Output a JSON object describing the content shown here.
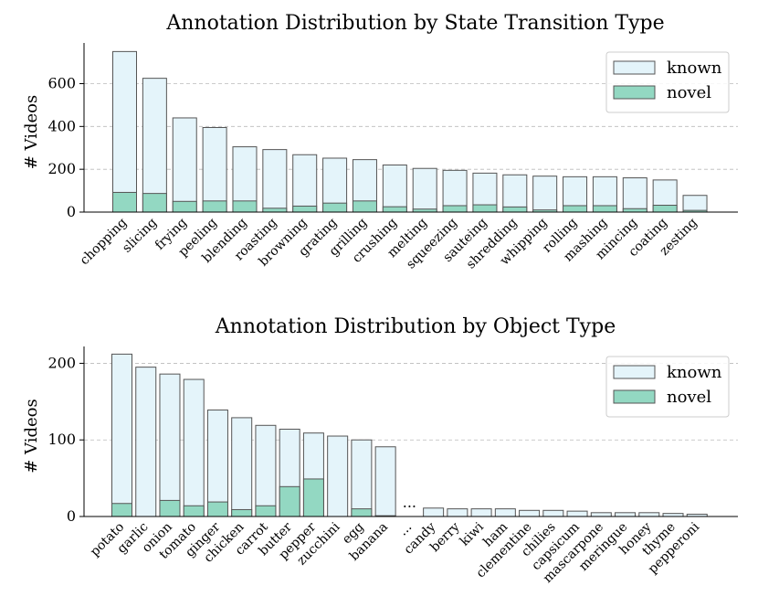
{
  "colors": {
    "known": "#e4f4fa",
    "novel": "#93d8c2",
    "edge": "#555555",
    "grid": "#bbbbbb"
  },
  "chart_data": [
    {
      "type": "bar",
      "title": "Annotation Distribution by State Transition Type",
      "ylabel": "# Videos",
      "xlabel": "",
      "ylim": [
        0,
        790
      ],
      "yticks": [
        0,
        200,
        400,
        600
      ],
      "grid": true,
      "legend_position": "top-right",
      "legend": [
        "known",
        "novel"
      ],
      "categories": [
        "chopping",
        "slicing",
        "frying",
        "peeling",
        "blending",
        "roasting",
        "browning",
        "grating",
        "grilling",
        "crushing",
        "melting",
        "squeezing",
        "sauteing",
        "shredding",
        "whipping",
        "rolling",
        "mashing",
        "mincing",
        "coating",
        "zesting"
      ],
      "series": [
        {
          "name": "known",
          "values": [
            750,
            625,
            440,
            395,
            305,
            292,
            268,
            252,
            245,
            220,
            204,
            195,
            182,
            174,
            168,
            165,
            165,
            160,
            150,
            78
          ]
        },
        {
          "name": "novel",
          "values": [
            92,
            87,
            50,
            52,
            52,
            18,
            28,
            42,
            52,
            25,
            14,
            30,
            34,
            24,
            10,
            30,
            30,
            16,
            32,
            8
          ]
        }
      ]
    },
    {
      "type": "bar",
      "title": "Annotation Distribution by Object Type",
      "ylabel": "# Videos",
      "xlabel": "",
      "ylim": [
        0,
        222
      ],
      "yticks": [
        0,
        100,
        200
      ],
      "grid": true,
      "legend_position": "top-right",
      "legend": [
        "known",
        "novel"
      ],
      "break_marker": "...",
      "categories": [
        "potato",
        "garlic",
        "onion",
        "tomato",
        "ginger",
        "chicken",
        "carrot",
        "butter",
        "pepper",
        "zucchini",
        "egg",
        "banana",
        "...",
        "candy",
        "berry",
        "kiwi",
        "ham",
        "clementine",
        "chilies",
        "capsicum",
        "mascarpone",
        "meringue",
        "honey",
        "thyme",
        "pepperoni"
      ],
      "series": [
        {
          "name": "known",
          "values": [
            212,
            195,
            186,
            179,
            139,
            129,
            119,
            114,
            109,
            105,
            100,
            91,
            null,
            11,
            10,
            10,
            10,
            8,
            8,
            7,
            5,
            5,
            5,
            4,
            3
          ]
        },
        {
          "name": "novel",
          "values": [
            17,
            0,
            21,
            14,
            19,
            9,
            14,
            39,
            49,
            0,
            10,
            1,
            null,
            0,
            0,
            0,
            0,
            0,
            0,
            0,
            0,
            0,
            0,
            0,
            0
          ]
        }
      ]
    }
  ]
}
